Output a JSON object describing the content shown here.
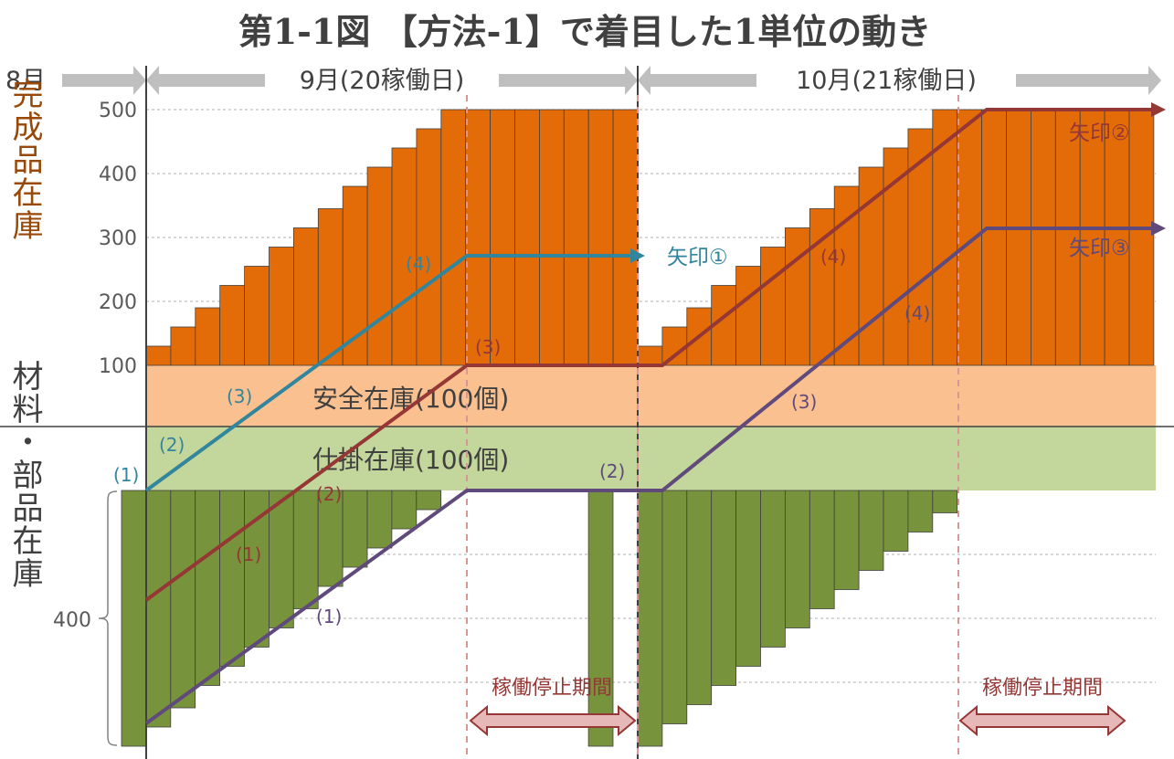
{
  "title": "第1-1図 【方法-1】で着目した1単位の動き",
  "months": {
    "aug": "8月",
    "sep": "9月(20稼働日)",
    "oct": "10月(21稼働日)"
  },
  "y_label_top": "完成品在庫",
  "y_label_bottom": "材料・部品在庫",
  "bands": {
    "safety": "安全在庫(100個)",
    "wip": "仕掛在庫(100個)"
  },
  "stop_label": "稼働停止期間",
  "arrows": {
    "a1": "矢印①",
    "a2": "矢印②",
    "a3": "矢印③"
  },
  "markers": {
    "p1": "(1)",
    "p2": "(2)",
    "p3": "(3)",
    "p4": "(4)"
  },
  "colors": {
    "finished": "#E36C09",
    "safety": "#FAC090",
    "wip": "#C3D69B",
    "material": "#77933C",
    "arrow1": "#31859C",
    "arrow2": "#953735",
    "arrow3": "#604A7B",
    "month_arrow": "#BFBFBF",
    "top_label": "#984807",
    "stop": "#E6B9B8"
  },
  "chart_data": {
    "type": "bar",
    "yticks": [
      100,
      200,
      300,
      400,
      500
    ],
    "material_label": 400,
    "sep": {
      "finished_stock": [
        130,
        160,
        190,
        225,
        255,
        285,
        315,
        345,
        380,
        410,
        440,
        470,
        500,
        500,
        500,
        500,
        500,
        500,
        500,
        500
      ],
      "material_stock": [
        400,
        370,
        340,
        305,
        275,
        245,
        215,
        185,
        150,
        120,
        90,
        60,
        30,
        0,
        0,
        0,
        0,
        0,
        0,
        400
      ]
    },
    "oct": {
      "finished_stock": [
        130,
        160,
        190,
        225,
        255,
        285,
        315,
        345,
        380,
        410,
        440,
        470,
        500,
        500,
        500,
        500,
        500,
        500,
        500,
        500,
        500
      ],
      "material_stock": [
        400,
        365,
        335,
        305,
        275,
        245,
        215,
        185,
        155,
        125,
        95,
        65,
        35,
        0,
        0,
        0,
        0,
        0,
        0,
        0,
        0
      ]
    }
  }
}
